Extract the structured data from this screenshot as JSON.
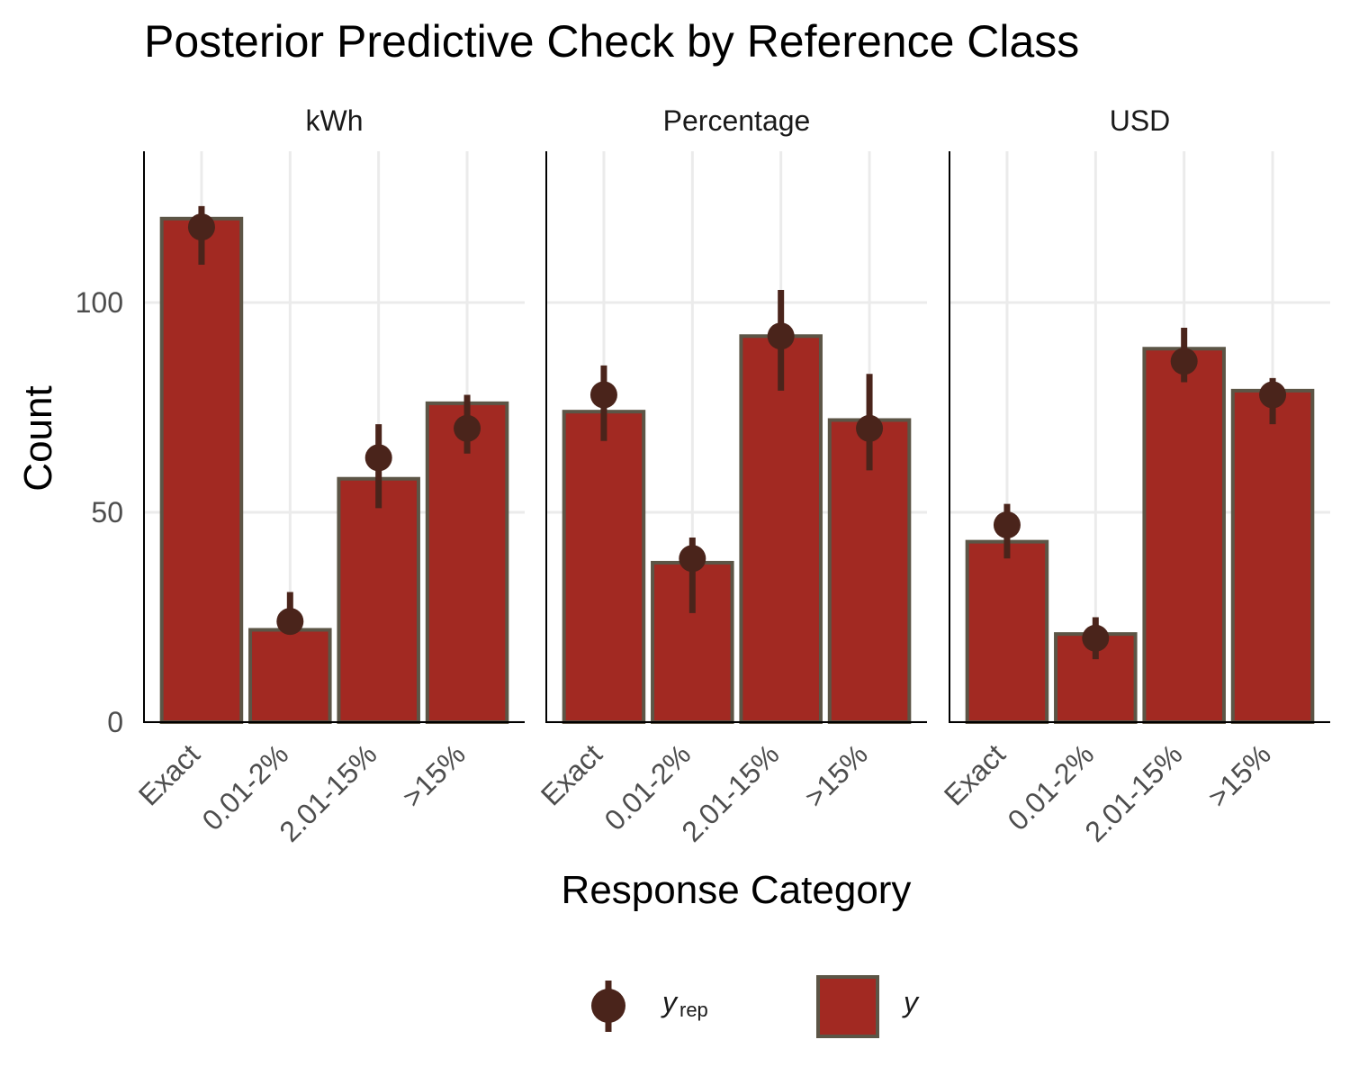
{
  "chart_data": {
    "type": "bar",
    "title": "Posterior Predictive Check by Reference Class",
    "xlabel": "Response Category",
    "ylabel": "Count",
    "categories": [
      "Exact",
      "0.01-2%",
      "2.01-15%",
      ">15%"
    ],
    "yticks": [
      0,
      50,
      100
    ],
    "ylim": [
      0,
      135
    ],
    "grid": true,
    "legend_position": "bottom",
    "legend": {
      "yrep_main": "y",
      "yrep_sub": "rep",
      "y_label": "y"
    },
    "colors": {
      "bar_fill": "#a22922",
      "bar_outline": "#5c5546",
      "point": "#4a241b"
    },
    "panels": [
      {
        "name": "kWh",
        "y": [
          120,
          22,
          58,
          76
        ],
        "yrep": [
          118,
          24,
          63,
          70
        ],
        "yrep_lo": [
          109,
          21,
          51,
          64
        ],
        "yrep_hi": [
          123,
          31,
          71,
          78
        ]
      },
      {
        "name": "Percentage",
        "y": [
          74,
          38,
          92,
          72
        ],
        "yrep": [
          78,
          39,
          92,
          70
        ],
        "yrep_lo": [
          67,
          26,
          79,
          60
        ],
        "yrep_hi": [
          85,
          44,
          103,
          83
        ]
      },
      {
        "name": "USD",
        "y": [
          43,
          21,
          89,
          79
        ],
        "yrep": [
          47,
          20,
          86,
          78
        ],
        "yrep_lo": [
          39,
          15,
          81,
          71
        ],
        "yrep_hi": [
          52,
          25,
          94,
          82
        ]
      }
    ]
  }
}
